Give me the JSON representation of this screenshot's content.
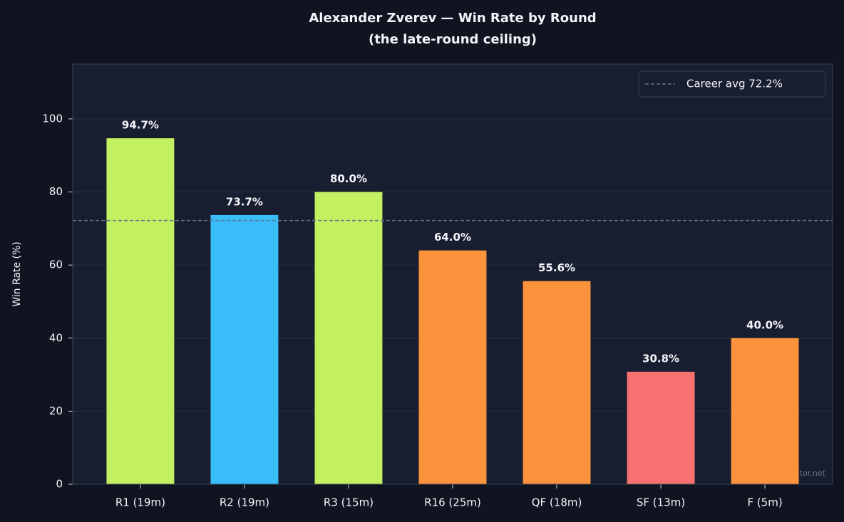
{
  "chart_data": {
    "type": "bar",
    "title": "Alexander Zverev — Win Rate by Round",
    "subtitle": "(the late-round ceiling)",
    "y_label": "Win Rate (%)",
    "categories": [
      "R1 (19m)",
      "R2 (19m)",
      "R3 (15m)",
      "R16 (25m)",
      "QF (18m)",
      "SF (13m)",
      "F (5m)"
    ],
    "values": [
      94.7,
      73.7,
      80.0,
      64.0,
      55.6,
      30.8,
      40.0
    ],
    "value_labels": [
      "94.7%",
      "73.7%",
      "80.0%",
      "64.0%",
      "55.6%",
      "30.8%",
      "40.0%"
    ],
    "colors": [
      "#c2f061",
      "#38bdf8",
      "#c2f061",
      "#fb923c",
      "#fb923c",
      "#f87171",
      "#fb923c"
    ],
    "ylim": [
      0,
      115
    ],
    "yticks": [
      0,
      20,
      40,
      60,
      80,
      100
    ],
    "grid": true,
    "reference_line": {
      "value": 72.2,
      "label": "Career avg 72.2%",
      "color": "#64748b"
    },
    "legend": "upper right",
    "watermark": "tennispredictor.net"
  }
}
